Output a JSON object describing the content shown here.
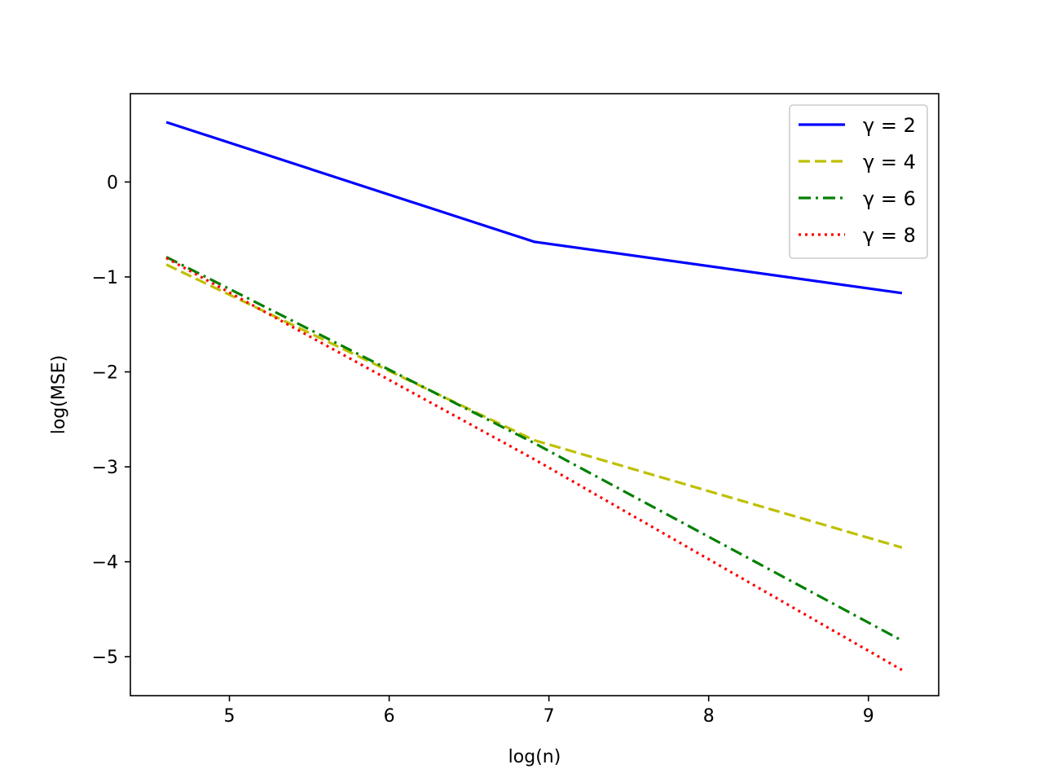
{
  "chart_data": {
    "type": "line",
    "title": "",
    "xlabel": "log(n)",
    "ylabel": "log(MSE)",
    "xlim": [
      4.38,
      9.44
    ],
    "ylim": [
      -5.41,
      0.93
    ],
    "xticks": [
      5,
      6,
      7,
      8,
      9
    ],
    "xtick_labels": [
      "5",
      "6",
      "7",
      "8",
      "9"
    ],
    "yticks": [
      0,
      -1,
      -2,
      -3,
      -4,
      -5
    ],
    "ytick_labels": [
      "0",
      "−1",
      "−2",
      "−3",
      "−4",
      "−5"
    ],
    "grid": false,
    "legend_position": "top-right",
    "x": [
      4.605,
      6.908,
      9.21
    ],
    "series": [
      {
        "name": "γ = 2",
        "values": [
          0.63,
          -0.63,
          -1.17
        ],
        "color": "#0000ff",
        "style": "solid"
      },
      {
        "name": "γ = 4",
        "values": [
          -0.87,
          -2.72,
          -3.85
        ],
        "color": "#bfbf00",
        "style": "dashed"
      },
      {
        "name": "γ = 6",
        "values": [
          -0.79,
          -2.75,
          -4.83
        ],
        "color": "#008000",
        "style": "dashdot"
      },
      {
        "name": "γ = 8",
        "values": [
          -0.8,
          -2.92,
          -5.14
        ],
        "color": "#ff0000",
        "style": "dotted"
      }
    ]
  }
}
